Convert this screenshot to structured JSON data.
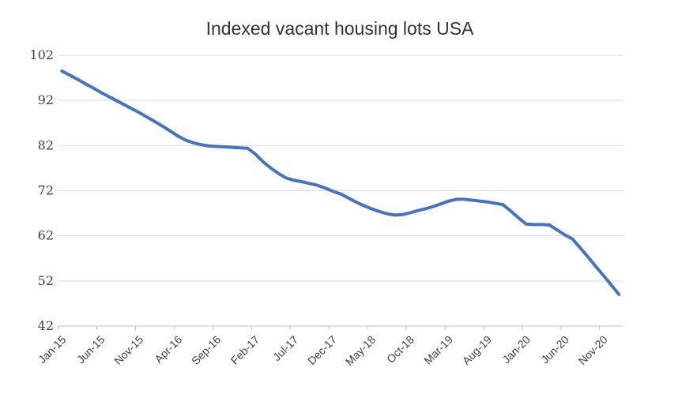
{
  "page": {
    "background": "#ffffff"
  },
  "chart_data": {
    "type": "line",
    "title": "Indexed vacant housing lots USA",
    "xlabel": "",
    "ylabel": "",
    "legend_position": "none",
    "grid": "horizontal",
    "ylim": [
      42,
      102
    ],
    "y_ticks": [
      42,
      52,
      62,
      72,
      82,
      92,
      102
    ],
    "x_tick_step": 5,
    "x_tick_labels": [
      "Jan-15",
      "Jun-15",
      "Nov-15",
      "Apr-16",
      "Sep-16",
      "Feb-17",
      "Jul-17",
      "Dec-17",
      "May-18",
      "Oct-18",
      "Mar-19",
      "Aug-19",
      "Jan-20",
      "Jun-20",
      "Nov-20"
    ],
    "x": [
      "Jan-15",
      "Feb-15",
      "Mar-15",
      "Apr-15",
      "May-15",
      "Jun-15",
      "Jul-15",
      "Aug-15",
      "Sep-15",
      "Oct-15",
      "Nov-15",
      "Dec-15",
      "Jan-16",
      "Feb-16",
      "Mar-16",
      "Apr-16",
      "May-16",
      "Jun-16",
      "Jul-16",
      "Aug-16",
      "Sep-16",
      "Oct-16",
      "Nov-16",
      "Dec-16",
      "Jan-17",
      "Feb-17",
      "Mar-17",
      "Apr-17",
      "May-17",
      "Jun-17",
      "Jul-17",
      "Aug-17",
      "Sep-17",
      "Oct-17",
      "Nov-17",
      "Dec-17",
      "Jan-18",
      "Feb-18",
      "Mar-18",
      "Apr-18",
      "May-18",
      "Jun-18",
      "Jul-18",
      "Aug-18",
      "Sep-18",
      "Oct-18",
      "Nov-18",
      "Dec-18",
      "Jan-19",
      "Feb-19",
      "Mar-19",
      "Apr-19",
      "May-19",
      "Jun-19",
      "Jul-19",
      "Aug-19",
      "Sep-19",
      "Oct-19",
      "Nov-19",
      "Dec-19",
      "Jan-20",
      "Feb-20",
      "Mar-20",
      "Apr-20",
      "May-20",
      "Jun-20",
      "Jul-20",
      "Aug-20",
      "Sep-20",
      "Oct-20",
      "Nov-20",
      "Dec-20",
      "Jan-21"
    ],
    "series": [
      {
        "name": "Indexed vacant housing lots USA",
        "values": [
          98.5,
          97.6,
          96.7,
          95.7,
          94.8,
          93.8,
          92.9,
          92.0,
          91.1,
          90.2,
          89.3,
          88.3,
          87.3,
          86.3,
          85.2,
          84.1,
          83.2,
          82.6,
          82.2,
          81.9,
          81.8,
          81.7,
          81.6,
          81.5,
          81.4,
          80.1,
          78.4,
          77.0,
          75.8,
          74.8,
          74.3,
          74.0,
          73.6,
          73.2,
          72.6,
          71.9,
          71.3,
          70.4,
          69.5,
          68.7,
          68.0,
          67.4,
          66.9,
          66.6,
          66.7,
          67.1,
          67.6,
          68.0,
          68.5,
          69.1,
          69.7,
          70.1,
          70.1,
          69.9,
          69.7,
          69.5,
          69.2,
          68.9,
          67.5,
          66.0,
          64.6,
          64.5,
          64.5,
          64.4,
          63.3,
          62.2,
          61.3,
          59.3,
          57.3,
          55.2,
          53.2,
          51.1,
          49.0
        ]
      }
    ],
    "colors": {
      "line": "#4472C4",
      "gridline": "#D9D9D9",
      "axis": "#C0C0C0",
      "tick_label": "#3F3F3F",
      "title": "#333333"
    }
  }
}
